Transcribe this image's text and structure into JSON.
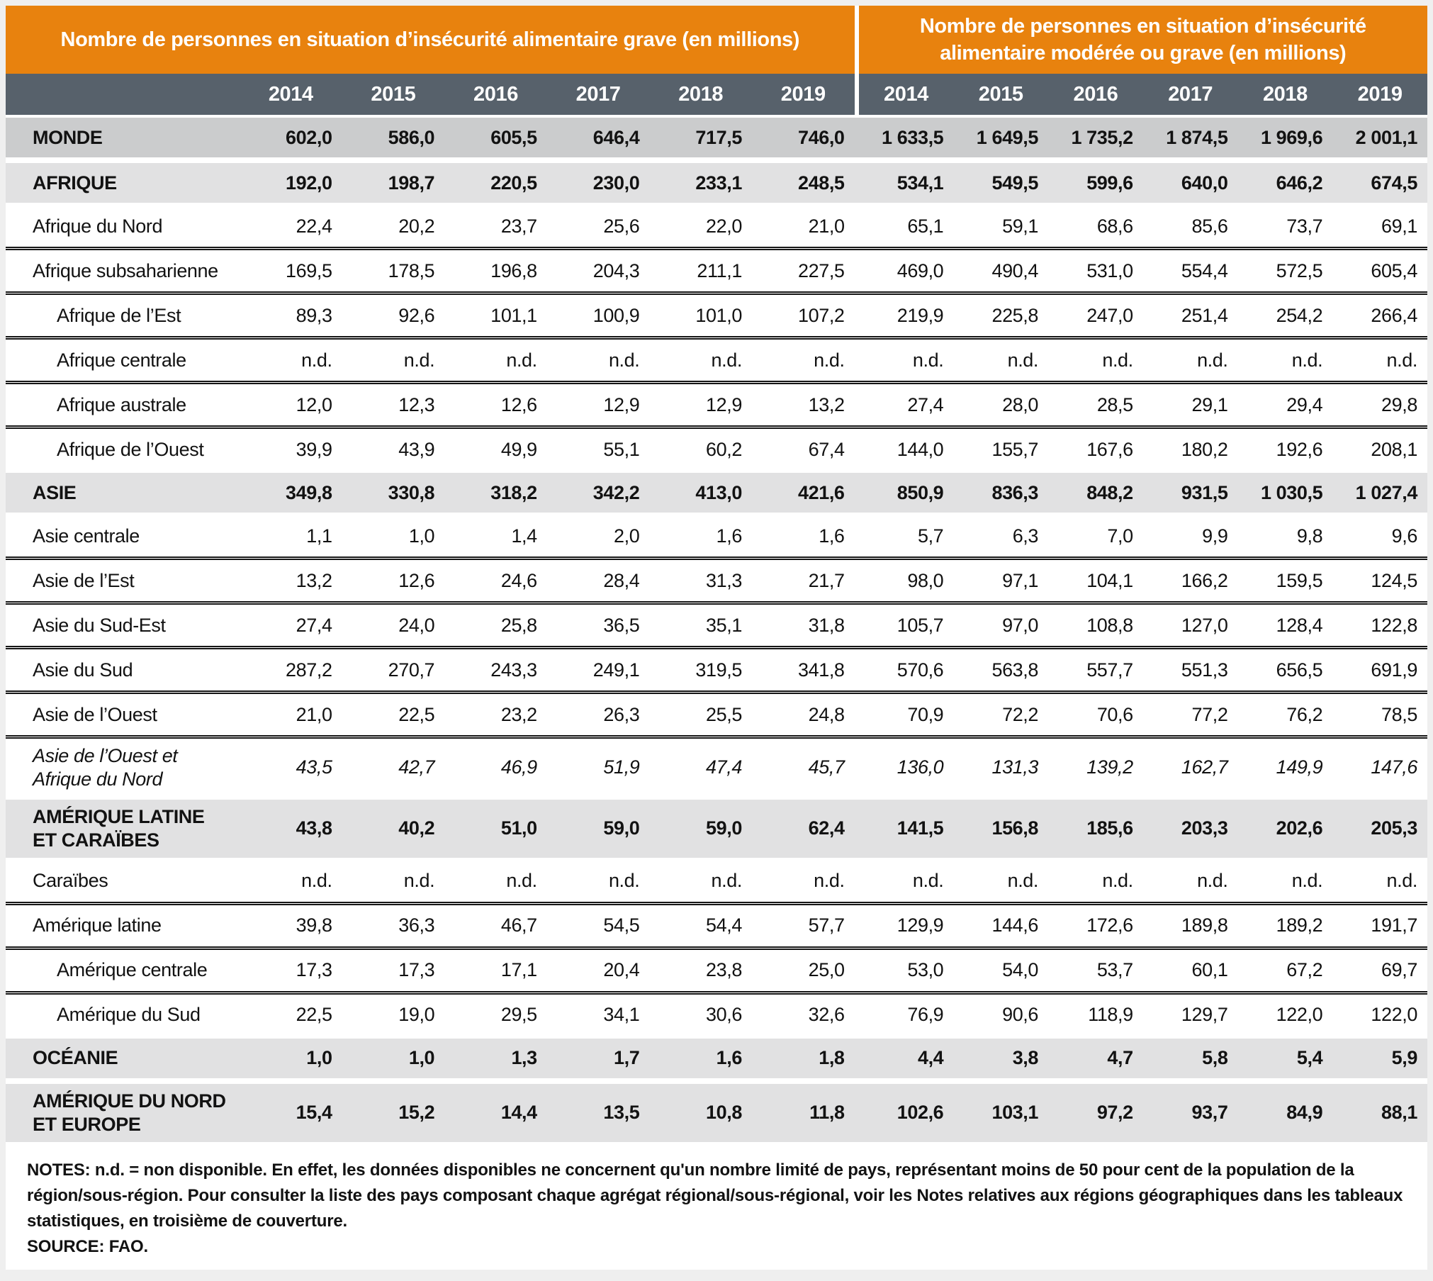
{
  "colors": {
    "header_orange": "#e8820e",
    "year_band_slate": "#57616b",
    "world_row_gray": "#cbcccd",
    "region_row_gray": "#e1e1e2",
    "page_background": "#efefef"
  },
  "chart_data": {
    "type": "table",
    "col_groups": [
      {
        "title": "Nombre de personnes en situation d’insécurité alimentaire grave (en millions)",
        "years": [
          "2014",
          "2015",
          "2016",
          "2017",
          "2018",
          "2019"
        ]
      },
      {
        "title": "Nombre de personnes en situation d’insécurité alimentaire modérée ou grave (en millions)",
        "years": [
          "2014",
          "2015",
          "2016",
          "2017",
          "2018",
          "2019"
        ]
      }
    ],
    "rows": [
      {
        "label": "MONDE",
        "style": "band-dark",
        "values": [
          "602,0",
          "586,0",
          "605,5",
          "646,4",
          "717,5",
          "746,0",
          "1 633,5",
          "1 649,5",
          "1 735,2",
          "1 874,5",
          "1 969,6",
          "2 001,1"
        ]
      },
      {
        "label": "AFRIQUE",
        "style": "band",
        "values": [
          "192,0",
          "198,7",
          "220,5",
          "230,0",
          "233,1",
          "248,5",
          "534,1",
          "549,5",
          "599,6",
          "640,0",
          "646,2",
          "674,5"
        ]
      },
      {
        "label": "Afrique du Nord",
        "style": "plain",
        "values": [
          "22,4",
          "20,2",
          "23,7",
          "25,6",
          "22,0",
          "21,0",
          "65,1",
          "59,1",
          "68,6",
          "85,6",
          "73,7",
          "69,1"
        ]
      },
      {
        "label": "Afrique subsaharienne",
        "style": "plain",
        "values": [
          "169,5",
          "178,5",
          "196,8",
          "204,3",
          "211,1",
          "227,5",
          "469,0",
          "490,4",
          "531,0",
          "554,4",
          "572,5",
          "605,4"
        ]
      },
      {
        "label": "Afrique de l’Est",
        "style": "plain-l2",
        "values": [
          "89,3",
          "92,6",
          "101,1",
          "100,9",
          "101,0",
          "107,2",
          "219,9",
          "225,8",
          "247,0",
          "251,4",
          "254,2",
          "266,4"
        ]
      },
      {
        "label": "Afrique centrale",
        "style": "plain-l2",
        "values": [
          "n.d.",
          "n.d.",
          "n.d.",
          "n.d.",
          "n.d.",
          "n.d.",
          "n.d.",
          "n.d.",
          "n.d.",
          "n.d.",
          "n.d.",
          "n.d."
        ]
      },
      {
        "label": "Afrique australe",
        "style": "plain-l2",
        "values": [
          "12,0",
          "12,3",
          "12,6",
          "12,9",
          "12,9",
          "13,2",
          "27,4",
          "28,0",
          "28,5",
          "29,1",
          "29,4",
          "29,8"
        ]
      },
      {
        "label": "Afrique de l’Ouest",
        "style": "plain-l2",
        "values": [
          "39,9",
          "43,9",
          "49,9",
          "55,1",
          "60,2",
          "67,4",
          "144,0",
          "155,7",
          "167,6",
          "180,2",
          "192,6",
          "208,1"
        ]
      },
      {
        "label": "ASIE",
        "style": "band",
        "values": [
          "349,8",
          "330,8",
          "318,2",
          "342,2",
          "413,0",
          "421,6",
          "850,9",
          "836,3",
          "848,2",
          "931,5",
          "1 030,5",
          "1 027,4"
        ]
      },
      {
        "label": "Asie centrale",
        "style": "plain",
        "values": [
          "1,1",
          "1,0",
          "1,4",
          "2,0",
          "1,6",
          "1,6",
          "5,7",
          "6,3",
          "7,0",
          "9,9",
          "9,8",
          "9,6"
        ]
      },
      {
        "label": "Asie de l’Est",
        "style": "plain",
        "values": [
          "13,2",
          "12,6",
          "24,6",
          "28,4",
          "31,3",
          "21,7",
          "98,0",
          "97,1",
          "104,1",
          "166,2",
          "159,5",
          "124,5"
        ]
      },
      {
        "label": "Asie du Sud-Est",
        "style": "plain",
        "values": [
          "27,4",
          "24,0",
          "25,8",
          "36,5",
          "35,1",
          "31,8",
          "105,7",
          "97,0",
          "108,8",
          "127,0",
          "128,4",
          "122,8"
        ]
      },
      {
        "label": "Asie du Sud",
        "style": "plain",
        "values": [
          "287,2",
          "270,7",
          "243,3",
          "249,1",
          "319,5",
          "341,8",
          "570,6",
          "563,8",
          "557,7",
          "551,3",
          "656,5",
          "691,9"
        ]
      },
      {
        "label": "Asie de l’Ouest",
        "style": "plain",
        "values": [
          "21,0",
          "22,5",
          "23,2",
          "26,3",
          "25,5",
          "24,8",
          "70,9",
          "72,2",
          "70,6",
          "77,2",
          "76,2",
          "78,5"
        ]
      },
      {
        "label": "Asie de l’Ouest et\nAfrique du Nord",
        "style": "italic",
        "values": [
          "43,5",
          "42,7",
          "46,9",
          "51,9",
          "47,4",
          "45,7",
          "136,0",
          "131,3",
          "139,2",
          "162,7",
          "149,9",
          "147,6"
        ]
      },
      {
        "label": "AMÉRIQUE LATINE\nET CARAÏBES",
        "style": "band",
        "values": [
          "43,8",
          "40,2",
          "51,0",
          "59,0",
          "59,0",
          "62,4",
          "141,5",
          "156,8",
          "185,6",
          "203,3",
          "202,6",
          "205,3"
        ]
      },
      {
        "label": "Caraïbes",
        "style": "plain",
        "values": [
          "n.d.",
          "n.d.",
          "n.d.",
          "n.d.",
          "n.d.",
          "n.d.",
          "n.d.",
          "n.d.",
          "n.d.",
          "n.d.",
          "n.d.",
          "n.d."
        ]
      },
      {
        "label": "Amérique latine",
        "style": "plain",
        "values": [
          "39,8",
          "36,3",
          "46,7",
          "54,5",
          "54,4",
          "57,7",
          "129,9",
          "144,6",
          "172,6",
          "189,8",
          "189,2",
          "191,7"
        ]
      },
      {
        "label": "Amérique centrale",
        "style": "plain-l2",
        "values": [
          "17,3",
          "17,3",
          "17,1",
          "20,4",
          "23,8",
          "25,0",
          "53,0",
          "54,0",
          "53,7",
          "60,1",
          "67,2",
          "69,7"
        ]
      },
      {
        "label": "Amérique du Sud",
        "style": "plain-l2",
        "values": [
          "22,5",
          "19,0",
          "29,5",
          "34,1",
          "30,6",
          "32,6",
          "76,9",
          "90,6",
          "118,9",
          "129,7",
          "122,0",
          "122,0"
        ]
      },
      {
        "label": "OCÉANIE",
        "style": "band",
        "values": [
          "1,0",
          "1,0",
          "1,3",
          "1,7",
          "1,6",
          "1,8",
          "4,4",
          "3,8",
          "4,7",
          "5,8",
          "5,4",
          "5,9"
        ]
      },
      {
        "label": "AMÉRIQUE DU NORD\nET EUROPE",
        "style": "band",
        "values": [
          "15,4",
          "15,2",
          "14,4",
          "13,5",
          "10,8",
          "11,8",
          "102,6",
          "103,1",
          "97,2",
          "93,7",
          "84,9",
          "88,1"
        ]
      }
    ],
    "notes": "NOTES: n.d. = non disponible. En effet, les données disponibles ne concernent qu'un nombre limité de pays, représentant moins de 50 pour cent de la population de la région/sous-région. Pour consulter la liste des pays composant chaque agrégat régional/sous-régional, voir les Notes relatives aux régions géographiques dans les tableaux statistiques, en troisième de couverture.",
    "source": "SOURCE: FAO."
  }
}
